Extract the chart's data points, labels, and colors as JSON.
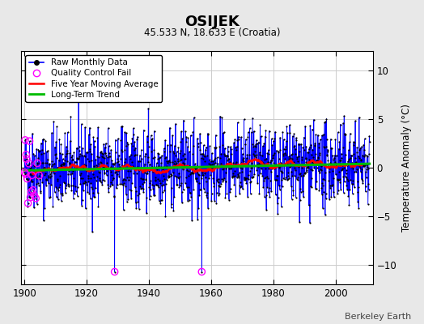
{
  "title": "OSIJEK",
  "subtitle": "45.533 N, 18.633 E (Croatia)",
  "ylabel": "Temperature Anomaly (°C)",
  "watermark": "Berkeley Earth",
  "year_start": 1900,
  "year_end": 2011,
  "ylim": [
    -12,
    12
  ],
  "yticks": [
    -10,
    -5,
    0,
    5,
    10
  ],
  "xticks": [
    1900,
    1920,
    1940,
    1960,
    1980,
    2000
  ],
  "background_color": "#e8e8e8",
  "plot_bg_color": "#ffffff",
  "raw_line_color": "#0000ff",
  "raw_dot_color": "#000000",
  "qc_fail_color": "#ff00ff",
  "moving_avg_color": "#ff0000",
  "trend_color": "#00bb00",
  "grid_color": "#cccccc",
  "legend_items": [
    "Raw Monthly Data",
    "Quality Control Fail",
    "Five Year Moving Average",
    "Long-Term Trend"
  ],
  "seed": 42
}
